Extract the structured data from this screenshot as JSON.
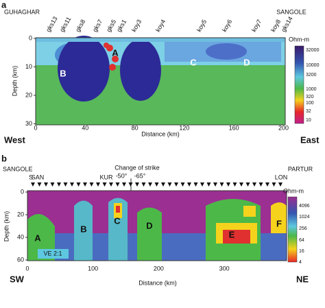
{
  "panels": [
    {
      "letter": "a",
      "left_label": "GUHAGHAR",
      "right_label": "SANGOLE",
      "stations": [
        "gks13",
        "gks11",
        "gks8",
        "gks7",
        "gks5",
        "gks1",
        "koy3",
        "koy4",
        "koy5",
        "koy6",
        "koy7",
        "koy8",
        "gks14"
      ],
      "y_label": "Depth (km)",
      "y_ticks": [
        "0",
        "10",
        "20",
        "30"
      ],
      "x_label": "Distance (km)",
      "x_ticks": [
        "0",
        "40",
        "80",
        "120",
        "160",
        "200"
      ],
      "colorbar_title": "Ohm-m",
      "colorbar_ticks": [
        "32000",
        "10000",
        "3200",
        "1000",
        "320",
        "100",
        "32",
        "10"
      ],
      "features": [
        "A",
        "B",
        "C",
        "D"
      ],
      "bottom_left": "West",
      "bottom_right": "East"
    },
    {
      "letter": "b",
      "left_label": "SANGOLE",
      "right_label": "PARTUR",
      "sites": [
        "S",
        "SAN",
        "KUR",
        "LON"
      ],
      "annotation": "Change of strike",
      "strike_left": "-50°",
      "strike_right": "-65°",
      "y_label": "Depth (km)",
      "y_ticks": [
        "0",
        "20",
        "40",
        "60"
      ],
      "x_label": "Distance (km)",
      "x_ticks": [
        "0",
        "100",
        "200",
        "300"
      ],
      "colorbar_title": "Ohm-m",
      "colorbar_ticks": [
        "4096",
        "1024",
        "256",
        "64",
        "16",
        "4"
      ],
      "features": [
        "A",
        "B",
        "C",
        "D",
        "E",
        "F"
      ],
      "note": "VE 2:1",
      "bottom_left": "SW",
      "bottom_right": "NE"
    }
  ]
}
